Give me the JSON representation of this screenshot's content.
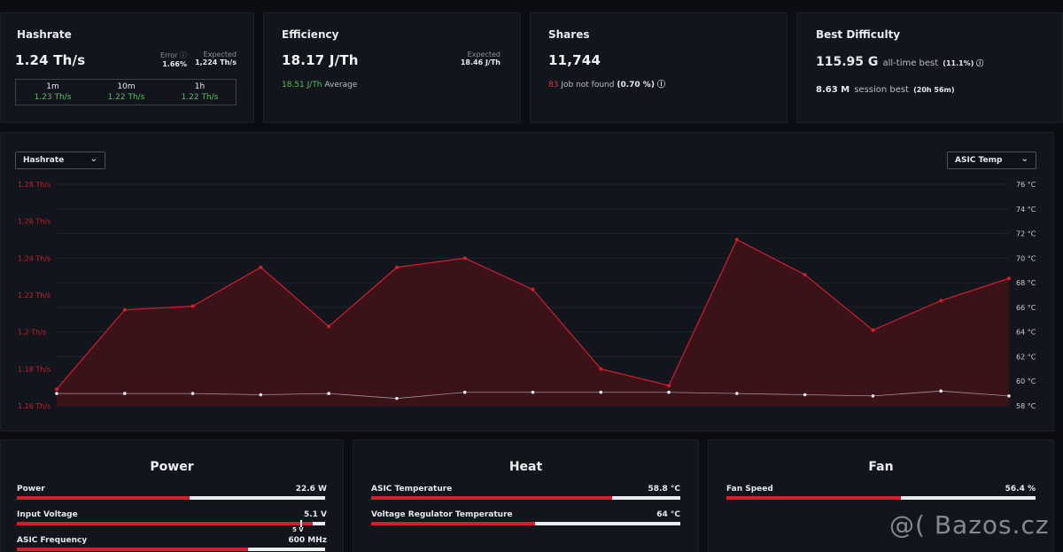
{
  "hashrate": {
    "title": "Hashrate",
    "value": "1.24 Th/s",
    "error_label": "Error ⓘ",
    "error_value": "1.66%",
    "expected_label": "Expected",
    "expected_value": "1,224 Th/s",
    "periods": [
      {
        "label": "1m",
        "value": "1.23 Th/s"
      },
      {
        "label": "10m",
        "value": "1.22 Th/s"
      },
      {
        "label": "1h",
        "value": "1.22 Th/s"
      }
    ]
  },
  "efficiency": {
    "title": "Efficiency",
    "value": "18.17 J/Th",
    "expected_label": "Expected",
    "expected_value": "18.46 J/Th",
    "average_value": "18.51 J/Th",
    "average_label": "Average"
  },
  "shares": {
    "title": "Shares",
    "value": "11,744",
    "rejected_count": "83",
    "rejected_label": "Job not found",
    "rejected_pct": "(0.70 %) ⓘ"
  },
  "best_difficulty": {
    "title": "Best Difficulty",
    "alltime_value": "115.95 G",
    "alltime_label": "all-time best",
    "alltime_pct": "(11.1%) ⓘ",
    "session_value": "8.63 M",
    "session_label": "session best",
    "session_time": "(20h 56m)"
  },
  "chart_controls": {
    "left_select": "Hashrate",
    "right_select": "ASIC Temp"
  },
  "chart_data": {
    "type": "area",
    "title": "",
    "series": [
      {
        "name": "Hashrate",
        "axis": "left",
        "unit": "Th/s",
        "values": [
          1.169,
          1.212,
          1.214,
          1.235,
          1.203,
          1.235,
          1.24,
          1.223,
          1.18,
          1.171,
          1.25,
          1.231,
          1.201,
          1.217,
          1.229
        ]
      },
      {
        "name": "ASIC Temp",
        "axis": "right",
        "unit": "°C",
        "values": [
          59.0,
          59.0,
          59.0,
          58.9,
          59.0,
          58.6,
          59.1,
          59.1,
          59.1,
          59.1,
          59.0,
          58.9,
          58.8,
          59.2,
          58.8
        ]
      }
    ],
    "left_ylim": [
      1.16,
      1.28
    ],
    "right_ylim": [
      58,
      76
    ],
    "left_ticks": [
      "1.28 Th/s",
      "1.26 Th/s",
      "1.24 Th/s",
      "1.22 Th/s",
      "1.2 Th/s",
      "1.18 Th/s",
      "1.16 Th/s"
    ],
    "right_ticks": [
      "76 °C",
      "74 °C",
      "72 °C",
      "70 °C",
      "68 °C",
      "66 °C",
      "64 °C",
      "62 °C",
      "60 °C",
      "58 °C"
    ],
    "grid": true,
    "colors": {
      "primary": "#d01f2e",
      "fill": "#3a1218",
      "secondary": "#c9cdd4"
    }
  },
  "power": {
    "title": "Power",
    "rows": [
      {
        "label": "Power",
        "value": "22.6 W",
        "fraction": 0.56
      },
      {
        "label": "Input Voltage",
        "value": "5.1 V",
        "fraction": 0.96,
        "marker_label": "5 V",
        "marker_fraction": 0.92
      },
      {
        "label": "ASIC Frequency",
        "value": "600 MHz",
        "fraction": 0.75
      }
    ]
  },
  "heat": {
    "title": "Heat",
    "rows": [
      {
        "label": "ASIC Temperature",
        "value": "58.8 °C",
        "fraction": 0.78
      },
      {
        "label": "Voltage Regulator Temperature",
        "value": "64 °C",
        "fraction": 0.53
      }
    ]
  },
  "fan": {
    "title": "Fan",
    "rows": [
      {
        "label": "Fan Speed",
        "value": "56.4 %",
        "fraction": 0.564
      }
    ]
  },
  "watermark": "@( Bazos.cz"
}
